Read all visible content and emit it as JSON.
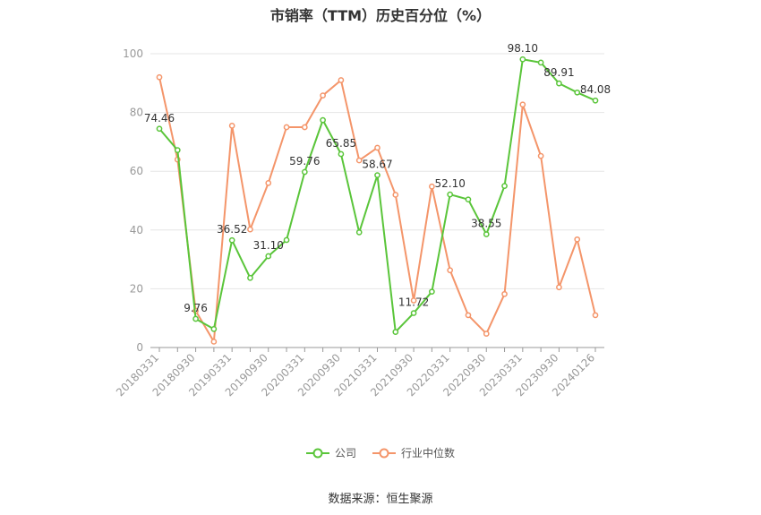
{
  "chart_data": {
    "type": "line",
    "title": "市销率（TTM）历史百分位（%）",
    "xlabel": "",
    "ylabel": "",
    "ylim": [
      0,
      100
    ],
    "yticks": [
      0,
      20,
      40,
      60,
      80,
      100
    ],
    "grid": true,
    "legend_position": "bottom",
    "x": [
      "20180331",
      "20180630",
      "20180930",
      "20181231",
      "20190331",
      "20190630",
      "20190930",
      "20191231",
      "20200331",
      "20200630",
      "20200930",
      "20201231",
      "20210331",
      "20210630",
      "20210930",
      "20211231",
      "20220331",
      "20220630",
      "20220930",
      "20221231",
      "20230331",
      "20230630",
      "20230930",
      "20231231",
      "20240126"
    ],
    "xtick_labels": [
      "20180331",
      "20180930",
      "20190331",
      "20190930",
      "20200331",
      "20200930",
      "20210331",
      "20210930",
      "20220331",
      "20220930",
      "20230331",
      "20230930",
      "20240126"
    ],
    "series": [
      {
        "name": "公司",
        "color": "#5ac53a",
        "values": [
          74.46,
          67.2,
          9.76,
          6.3,
          36.52,
          23.7,
          31.1,
          36.6,
          59.76,
          77.4,
          65.85,
          39.2,
          58.67,
          5.3,
          11.72,
          19.0,
          52.1,
          50.4,
          38.55,
          55.0,
          98.1,
          97.0,
          89.91,
          86.8,
          84.08
        ]
      },
      {
        "name": "行业中位数",
        "color": "#f4956a",
        "values": [
          92.0,
          64.0,
          12.5,
          2.0,
          75.5,
          40.2,
          56.0,
          75.0,
          75.0,
          85.8,
          91.0,
          63.7,
          68.0,
          52.0,
          16.0,
          54.8,
          26.3,
          11.0,
          4.7,
          18.2,
          82.7,
          65.2,
          20.5,
          36.8,
          11.0
        ]
      }
    ],
    "data_labels": [
      {
        "index": 0,
        "text": "74.46"
      },
      {
        "index": 2,
        "text": "9.76"
      },
      {
        "index": 4,
        "text": "36.52"
      },
      {
        "index": 6,
        "text": "31.10"
      },
      {
        "index": 8,
        "text": "59.76"
      },
      {
        "index": 10,
        "text": "65.85"
      },
      {
        "index": 12,
        "text": "58.67"
      },
      {
        "index": 14,
        "text": "11.72"
      },
      {
        "index": 16,
        "text": "52.10"
      },
      {
        "index": 18,
        "text": "38.55"
      },
      {
        "index": 20,
        "text": "98.10"
      },
      {
        "index": 22,
        "text": "89.91"
      },
      {
        "index": 24,
        "text": "84.08"
      }
    ]
  },
  "source_text": "数据来源：恒生聚源"
}
